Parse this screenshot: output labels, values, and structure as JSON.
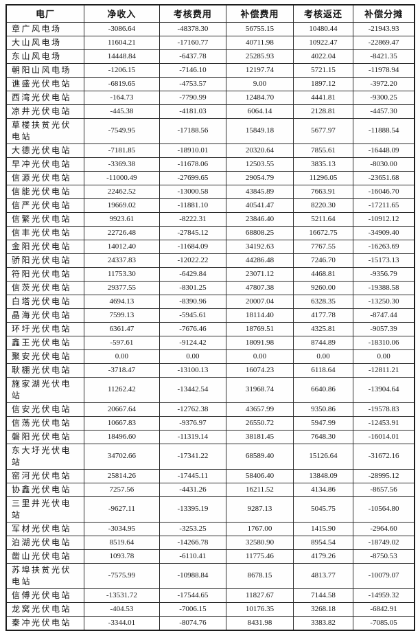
{
  "table": {
    "columns": [
      "电厂",
      "净收入",
      "考核费用",
      "补偿费用",
      "考核返还",
      "补偿分摊"
    ],
    "rows": [
      {
        "name": "章广风电场",
        "values": [
          "-3086.64",
          "-48378.30",
          "56755.15",
          "10480.44",
          "-21943.93"
        ]
      },
      {
        "name": "大山风电场",
        "values": [
          "11604.21",
          "-17160.77",
          "40711.98",
          "10922.47",
          "-22869.47"
        ]
      },
      {
        "name": "东山风电场",
        "values": [
          "14448.84",
          "-6437.78",
          "25285.93",
          "4022.04",
          "-8421.35"
        ]
      },
      {
        "name": "朝阳山风电场",
        "values": [
          "-1206.15",
          "-7146.10",
          "12197.74",
          "5721.15",
          "-11978.94"
        ]
      },
      {
        "name": "谯盛光伏电站",
        "values": [
          "-6819.65",
          "-4753.57",
          "9.00",
          "1897.12",
          "-3972.20"
        ]
      },
      {
        "name": "西湾光伏电站",
        "values": [
          "-164.73",
          "-7790.99",
          "12484.70",
          "4441.81",
          "-9300.25"
        ]
      },
      {
        "name": "凉井光伏电站",
        "values": [
          "-445.38",
          "-4181.03",
          "6064.14",
          "2128.81",
          "-4457.30"
        ]
      },
      {
        "name": "草楼扶贫光伏电站",
        "values": [
          "-7549.95",
          "-17188.56",
          "15849.18",
          "5677.97",
          "-11888.54"
        ]
      },
      {
        "name": "大德光伏电站",
        "values": [
          "-7181.85",
          "-18910.01",
          "20320.64",
          "7855.61",
          "-16448.09"
        ]
      },
      {
        "name": "早冲光伏电站",
        "values": [
          "-3369.38",
          "-11678.06",
          "12503.55",
          "3835.13",
          "-8030.00"
        ]
      },
      {
        "name": "信源光伏电站",
        "values": [
          "-11000.49",
          "-27699.65",
          "29054.79",
          "11296.05",
          "-23651.68"
        ]
      },
      {
        "name": "信能光伏电站",
        "values": [
          "22462.52",
          "-13000.58",
          "43845.89",
          "7663.91",
          "-16046.70"
        ]
      },
      {
        "name": "信严光伏电站",
        "values": [
          "19669.02",
          "-11881.10",
          "40541.47",
          "8220.30",
          "-17211.65"
        ]
      },
      {
        "name": "信繁光伏电站",
        "values": [
          "9923.61",
          "-8222.31",
          "23846.40",
          "5211.64",
          "-10912.12"
        ]
      },
      {
        "name": "信丰光伏电站",
        "values": [
          "22726.48",
          "-27845.12",
          "68808.25",
          "16672.75",
          "-34909.40"
        ]
      },
      {
        "name": "金阳光伏电站",
        "values": [
          "14012.40",
          "-11684.09",
          "34192.63",
          "7767.55",
          "-16263.69"
        ]
      },
      {
        "name": "骄阳光伏电站",
        "values": [
          "24337.83",
          "-12022.22",
          "44286.48",
          "7246.70",
          "-15173.13"
        ]
      },
      {
        "name": "符阳光伏电站",
        "values": [
          "11753.30",
          "-6429.84",
          "23071.12",
          "4468.81",
          "-9356.79"
        ]
      },
      {
        "name": "信茨光伏电站",
        "values": [
          "29377.55",
          "-8301.25",
          "47807.38",
          "9260.00",
          "-19388.58"
        ]
      },
      {
        "name": "白塔光伏电站",
        "values": [
          "4694.13",
          "-8390.96",
          "20007.04",
          "6328.35",
          "-13250.30"
        ]
      },
      {
        "name": "晶海光伏电站",
        "values": [
          "7599.13",
          "-5945.61",
          "18114.40",
          "4177.78",
          "-8747.44"
        ]
      },
      {
        "name": "环圩光伏电站",
        "values": [
          "6361.47",
          "-7676.46",
          "18769.51",
          "4325.81",
          "-9057.39"
        ]
      },
      {
        "name": "鑫王光伏电站",
        "values": [
          "-597.61",
          "-9124.42",
          "18091.98",
          "8744.89",
          "-18310.06"
        ]
      },
      {
        "name": "聚安光伏电站",
        "values": [
          "0.00",
          "0.00",
          "0.00",
          "0.00",
          "0.00"
        ]
      },
      {
        "name": "耿棚光伏电站",
        "values": [
          "-3718.47",
          "-13100.13",
          "16074.23",
          "6118.64",
          "-12811.21"
        ]
      },
      {
        "name": "施家湖光伏电站",
        "values": [
          "11262.42",
          "-13442.54",
          "31968.74",
          "6640.86",
          "-13904.64"
        ]
      },
      {
        "name": "信安光伏电站",
        "values": [
          "20667.64",
          "-12762.38",
          "43657.99",
          "9350.86",
          "-19578.83"
        ]
      },
      {
        "name": "信荡光伏电站",
        "values": [
          "10667.83",
          "-9376.97",
          "26550.72",
          "5947.99",
          "-12453.91"
        ]
      },
      {
        "name": "磐阳光伏电站",
        "values": [
          "18496.60",
          "-11319.14",
          "38181.45",
          "7648.30",
          "-16014.01"
        ]
      },
      {
        "name": "东大圩光伏电站",
        "values": [
          "34702.66",
          "-17341.22",
          "68589.40",
          "15126.64",
          "-31672.16"
        ]
      },
      {
        "name": "窑河光伏电站",
        "values": [
          "25814.26",
          "-17445.11",
          "58406.40",
          "13848.09",
          "-28995.12"
        ]
      },
      {
        "name": "协鑫光伏电站",
        "values": [
          "7257.56",
          "-4431.26",
          "16211.52",
          "4134.86",
          "-8657.56"
        ]
      },
      {
        "name": "三里井光伏电站",
        "values": [
          "-9627.11",
          "-13395.19",
          "9287.13",
          "5045.75",
          "-10564.80"
        ]
      },
      {
        "name": "军材光伏电站",
        "values": [
          "-3034.95",
          "-3253.25",
          "1767.00",
          "1415.90",
          "-2964.60"
        ]
      },
      {
        "name": "泊湖光伏电站",
        "values": [
          "8519.64",
          "-14266.78",
          "32580.90",
          "8954.54",
          "-18749.02"
        ]
      },
      {
        "name": "凿山光伏电站",
        "values": [
          "1093.78",
          "-6110.41",
          "11775.46",
          "4179.26",
          "-8750.53"
        ]
      },
      {
        "name": "苏埠扶贫光伏电站",
        "values": [
          "-7575.99",
          "-10988.84",
          "8678.15",
          "4813.77",
          "-10079.07"
        ]
      },
      {
        "name": "信傅光伏电站",
        "values": [
          "-13531.72",
          "-17544.65",
          "11827.67",
          "7144.58",
          "-14959.32"
        ]
      },
      {
        "name": "龙窝光伏电站",
        "values": [
          "-404.53",
          "-7006.15",
          "10176.35",
          "3268.18",
          "-6842.91"
        ]
      },
      {
        "name": "秦冲光伏电站",
        "values": [
          "-3344.01",
          "-8074.76",
          "8431.98",
          "3383.82",
          "-7085.05"
        ]
      }
    ],
    "column_widths_pct": [
      19.1,
      18.4,
      16.4,
      16.4,
      14.7,
      15.0
    ]
  }
}
